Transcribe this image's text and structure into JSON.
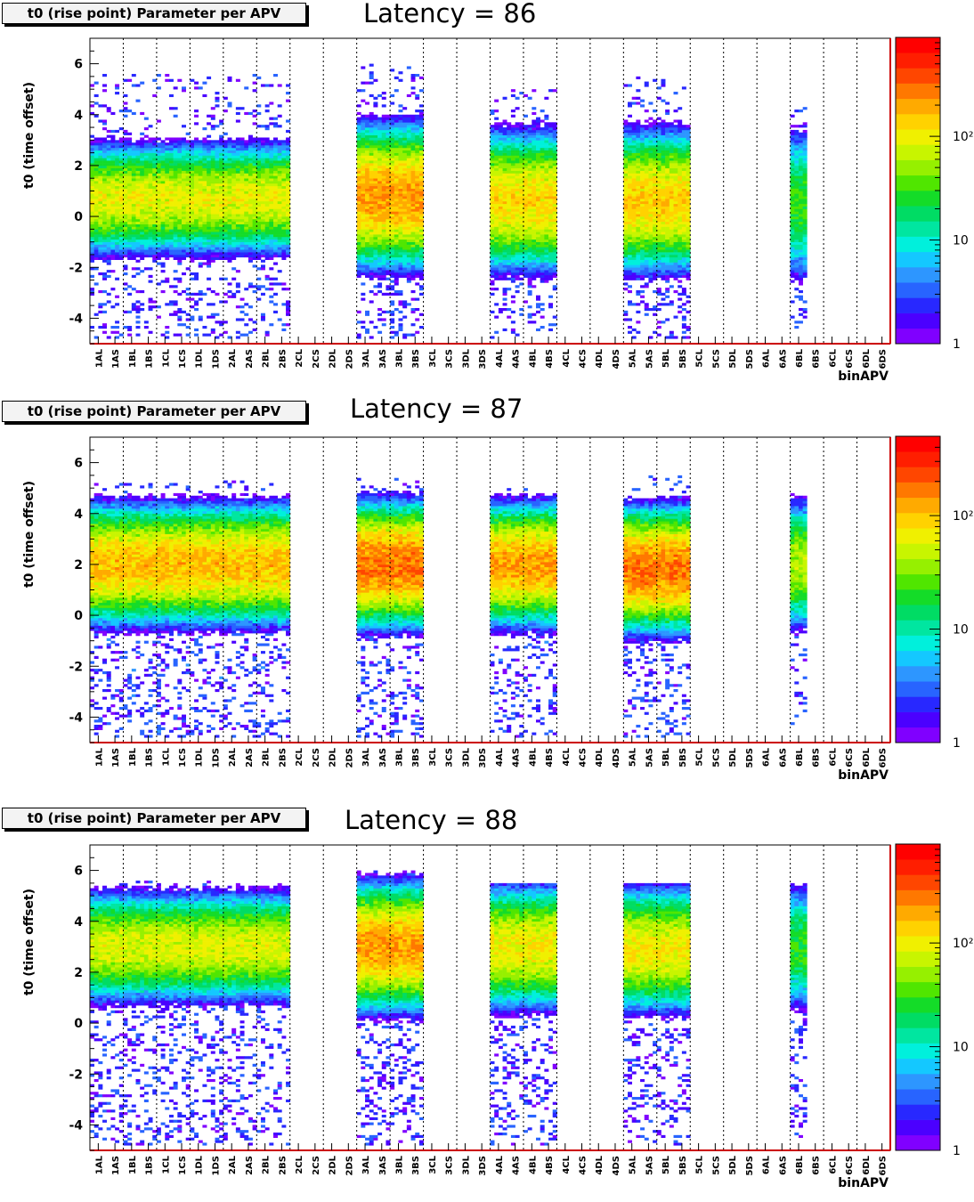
{
  "chart_data": [
    {
      "type": "heatmap",
      "title_box": "t0 (rise point) Parameter per APV",
      "annotation": "Latency = 86",
      "xlabel": "binAPV",
      "ylabel": "t0 (time offset)",
      "x_categories": [
        "1AL",
        "1AS",
        "1BL",
        "1BS",
        "1CL",
        "1CS",
        "1DL",
        "1DS",
        "2AL",
        "2AS",
        "2BL",
        "2BS",
        "2CL",
        "2CS",
        "2DL",
        "2DS",
        "3AL",
        "3AS",
        "3BL",
        "3BS",
        "3CL",
        "3CS",
        "3DL",
        "3DS",
        "4AL",
        "4AS",
        "4BL",
        "4BS",
        "4CL",
        "4CS",
        "4DL",
        "4DS",
        "5AL",
        "5AS",
        "5BL",
        "5BS",
        "5CL",
        "5CS",
        "5DL",
        "5DS",
        "6AL",
        "6AS",
        "6BL",
        "6BS",
        "6CL",
        "6CS",
        "6DL",
        "6DS"
      ],
      "ylim": [
        -5,
        7
      ],
      "y_ticks": [
        -4,
        -2,
        0,
        2,
        4,
        6
      ],
      "z_scale": "log",
      "z_tick_labels": [
        "1",
        "10",
        "10²"
      ],
      "z_ticks": [
        1,
        10,
        100
      ],
      "z_max": 900,
      "grid": "vertical dashed lines between modules",
      "occupied_groups": [
        {
          "first": 0,
          "last": 11,
          "center": 0.7,
          "spread": 0.8,
          "peak": 130,
          "tail_min": -4.8,
          "tail_max": 5.6
        },
        {
          "first": 16,
          "last": 19,
          "center": 0.8,
          "spread": 1.0,
          "peak": 300,
          "tail_min": -4.8,
          "tail_max": 6.0
        },
        {
          "first": 24,
          "last": 27,
          "center": 0.6,
          "spread": 1.0,
          "peak": 180,
          "tail_min": -4.8,
          "tail_max": 5.0
        },
        {
          "first": 32,
          "last": 35,
          "center": 0.6,
          "spread": 1.0,
          "peak": 200,
          "tail_min": -4.8,
          "tail_max": 5.5
        },
        {
          "first": 42,
          "last": 42,
          "center": 0.5,
          "spread": 1.2,
          "peak": 40,
          "tail_min": -4.5,
          "tail_max": 4.3
        }
      ],
      "colors": [
        "#8000ff",
        "#4b00ff",
        "#2828ff",
        "#2864ff",
        "#2d96ff",
        "#14c8ff",
        "#00f0dc",
        "#00e6a0",
        "#00dc64",
        "#14dc28",
        "#50e600",
        "#96f000",
        "#c8f500",
        "#f0f000",
        "#ffd200",
        "#ffaa00",
        "#ff7800",
        "#ff4600",
        "#ff1e00",
        "#ff0000"
      ]
    },
    {
      "type": "heatmap",
      "title_box": "t0 (rise point) Parameter per APV",
      "annotation": "Latency = 87",
      "xlabel": "binAPV",
      "ylabel": "t0 (time offset)",
      "x_categories": [
        "1AL",
        "1AS",
        "1BL",
        "1BS",
        "1CL",
        "1CS",
        "1DL",
        "1DS",
        "2AL",
        "2AS",
        "2BL",
        "2BS",
        "2CL",
        "2CS",
        "2DL",
        "2DS",
        "3AL",
        "3AS",
        "3BL",
        "3BS",
        "3CL",
        "3CS",
        "3DL",
        "3DS",
        "4AL",
        "4AS",
        "4BL",
        "4BS",
        "4CL",
        "4CS",
        "4DL",
        "4DS",
        "5AL",
        "5AS",
        "5BL",
        "5BS",
        "5CL",
        "5CS",
        "5DL",
        "5DS",
        "6AL",
        "6AS",
        "6BL",
        "6BS",
        "6CL",
        "6CS",
        "6DL",
        "6DS"
      ],
      "ylim": [
        -5,
        7
      ],
      "y_ticks": [
        -4,
        -2,
        0,
        2,
        4,
        6
      ],
      "z_scale": "log",
      "z_tick_labels": [
        "1",
        "10",
        "10²"
      ],
      "z_ticks": [
        1,
        10,
        100
      ],
      "z_max": 500,
      "grid": "vertical dashed lines between modules",
      "occupied_groups": [
        {
          "first": 0,
          "last": 11,
          "center": 2.0,
          "spread": 0.9,
          "peak": 150,
          "tail_min": -4.8,
          "tail_max": 5.3
        },
        {
          "first": 16,
          "last": 19,
          "center": 2.0,
          "spread": 0.9,
          "peak": 250,
          "tail_min": -4.8,
          "tail_max": 5.4
        },
        {
          "first": 24,
          "last": 27,
          "center": 2.0,
          "spread": 0.9,
          "peak": 180,
          "tail_min": -4.8,
          "tail_max": 5.0
        },
        {
          "first": 32,
          "last": 35,
          "center": 1.8,
          "spread": 0.9,
          "peak": 250,
          "tail_min": -4.8,
          "tail_max": 5.5
        },
        {
          "first": 42,
          "last": 42,
          "center": 2.0,
          "spread": 1.0,
          "peak": 60,
          "tail_min": -4.3,
          "tail_max": 5.0
        }
      ],
      "colors": [
        "#8000ff",
        "#4b00ff",
        "#2828ff",
        "#2864ff",
        "#2d96ff",
        "#14c8ff",
        "#00f0dc",
        "#00e6a0",
        "#00dc64",
        "#14dc28",
        "#50e600",
        "#96f000",
        "#c8f500",
        "#f0f000",
        "#ffd200",
        "#ffaa00",
        "#ff7800",
        "#ff4600",
        "#ff1e00",
        "#ff0000"
      ]
    },
    {
      "type": "heatmap",
      "title_box": "t0 (rise point) Parameter per APV",
      "annotation": "Latency = 88",
      "xlabel": "binAPV",
      "ylabel": "t0 (time offset)",
      "x_categories": [
        "1AL",
        "1AS",
        "1BL",
        "1BS",
        "1CL",
        "1CS",
        "1DL",
        "1DS",
        "2AL",
        "2AS",
        "2BL",
        "2BS",
        "2CL",
        "2CS",
        "2DL",
        "2DS",
        "3AL",
        "3AS",
        "3BL",
        "3BS",
        "3CL",
        "3CS",
        "3DL",
        "3DS",
        "4AL",
        "4AS",
        "4BL",
        "4BS",
        "4CL",
        "4CS",
        "4DL",
        "4DS",
        "5AL",
        "5AS",
        "5BL",
        "5BS",
        "5CL",
        "5CS",
        "5DL",
        "5DS",
        "6AL",
        "6AS",
        "6BL",
        "6BS",
        "6CL",
        "6CS",
        "6DL",
        "6DS"
      ],
      "ylim": [
        -5,
        7
      ],
      "y_ticks": [
        -4,
        -2,
        0,
        2,
        4,
        6
      ],
      "z_scale": "log",
      "z_tick_labels": [
        "1",
        "10",
        "10²"
      ],
      "z_ticks": [
        1,
        10,
        100
      ],
      "z_max": 900,
      "grid": "vertical dashed lines between modules",
      "occupied_groups": [
        {
          "first": 0,
          "last": 11,
          "center": 3.0,
          "spread": 0.8,
          "peak": 120,
          "tail_min": -4.8,
          "tail_max": 5.6
        },
        {
          "first": 16,
          "last": 19,
          "center": 3.0,
          "spread": 0.9,
          "peak": 300,
          "tail_min": -4.8,
          "tail_max": 6.0
        },
        {
          "first": 24,
          "last": 27,
          "center": 3.0,
          "spread": 0.9,
          "peak": 150,
          "tail_min": -4.8,
          "tail_max": 5.5
        },
        {
          "first": 32,
          "last": 35,
          "center": 2.9,
          "spread": 0.9,
          "peak": 150,
          "tail_min": -4.8,
          "tail_max": 5.5
        },
        {
          "first": 42,
          "last": 42,
          "center": 3.0,
          "spread": 1.0,
          "peak": 40,
          "tail_min": -4.5,
          "tail_max": 5.5
        }
      ],
      "colors": [
        "#8000ff",
        "#4b00ff",
        "#2828ff",
        "#2864ff",
        "#2d96ff",
        "#14c8ff",
        "#00f0dc",
        "#00e6a0",
        "#00dc64",
        "#14dc28",
        "#50e600",
        "#96f000",
        "#c8f500",
        "#f0f000",
        "#ffd200",
        "#ffaa00",
        "#ff7800",
        "#ff4600",
        "#ff1e00",
        "#ff0000"
      ]
    }
  ]
}
